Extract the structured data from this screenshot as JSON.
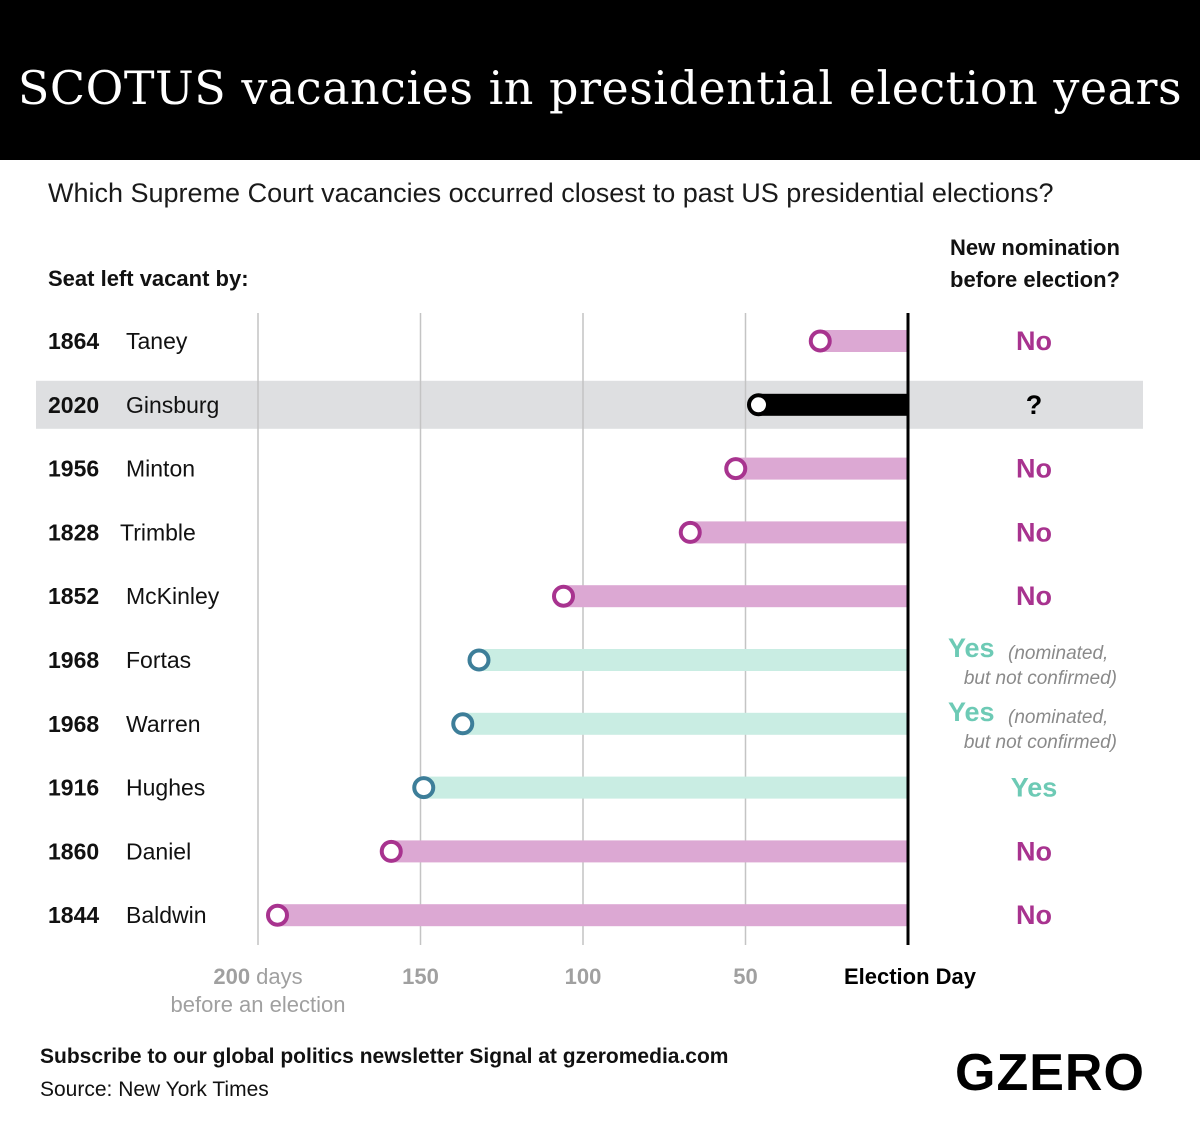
{
  "header": {
    "title": "SCOTUS vacancies in presidential election years"
  },
  "subtitle": "Which Supreme Court vacancies occurred closest to past US presidential elections?",
  "column_headers": {
    "left": "Seat left vacant by:",
    "right_line1": "New nomination",
    "right_line2": "before election?"
  },
  "footer": {
    "newsletter": "Subscribe to our global politics newsletter Signal at gzeromedia.com",
    "source": "Source: New York Times",
    "logo": "GZERO"
  },
  "colors": {
    "no": "#a8338f",
    "no_bar": "#dca8d3",
    "yes": "#6dcab5",
    "yes_bar": "#c9ede3",
    "yes_marker": "#3d7e99",
    "current": "#000000",
    "highlight_row": "#dedfe1"
  },
  "chart_data": {
    "type": "bar",
    "xlabel": "days before an election",
    "xlim": [
      200,
      0
    ],
    "x_ticks": [
      {
        "value": 200,
        "label": "200",
        "unit": "days",
        "unit_line2": "before an election"
      },
      {
        "value": 150,
        "label": "150"
      },
      {
        "value": 100,
        "label": "100"
      },
      {
        "value": 50,
        "label": "50"
      },
      {
        "value": 0,
        "label": "Election Day"
      }
    ],
    "rows": [
      {
        "year": "1864",
        "name": "Taney",
        "days": 27,
        "status": "no",
        "answer": "No"
      },
      {
        "year": "2020",
        "name": "Ginsburg",
        "days": 46,
        "status": "current",
        "answer": "?"
      },
      {
        "year": "1956",
        "name": "Minton",
        "days": 53,
        "status": "no",
        "answer": "No"
      },
      {
        "year": "1828",
        "name": "Trimble",
        "days": 67,
        "status": "no",
        "answer": "No"
      },
      {
        "year": "1852",
        "name": "McKinley",
        "days": 106,
        "status": "no",
        "answer": "No"
      },
      {
        "year": "1968",
        "name": "Fortas",
        "days": 132,
        "status": "yes",
        "answer": "Yes",
        "note1": "(nominated,",
        "note2": "but not confirmed)"
      },
      {
        "year": "1968",
        "name": "Warren",
        "days": 137,
        "status": "yes",
        "answer": "Yes",
        "note1": "(nominated,",
        "note2": "but not confirmed)"
      },
      {
        "year": "1916",
        "name": "Hughes",
        "days": 149,
        "status": "yes",
        "answer": "Yes"
      },
      {
        "year": "1860",
        "name": "Daniel",
        "days": 159,
        "status": "no",
        "answer": "No"
      },
      {
        "year": "1844",
        "name": "Baldwin",
        "days": 194,
        "status": "no",
        "answer": "No"
      }
    ]
  }
}
